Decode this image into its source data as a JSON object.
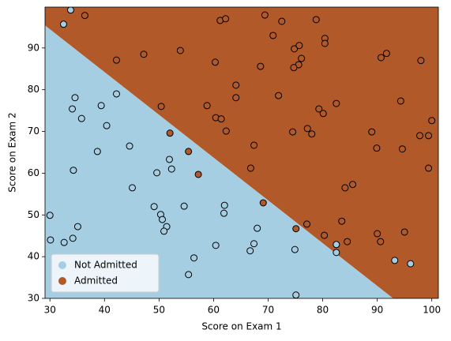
{
  "chart_data": {
    "type": "scatter",
    "xlabel": "Score on Exam 1",
    "ylabel": "Score on Exam 2",
    "xlim": [
      29.1,
      101.2
    ],
    "ylim": [
      30,
      99.8
    ],
    "xticks": [
      30,
      40,
      50,
      60,
      70,
      80,
      90,
      100
    ],
    "yticks": [
      30,
      40,
      50,
      60,
      70,
      80,
      90
    ],
    "legend": "lower left",
    "boundary": {
      "x": [
        29.1,
        92.9
      ],
      "y": [
        95.4,
        30
      ]
    },
    "series": [
      {
        "name": "Not Admitted",
        "color": "#a6cee3",
        "x": [
          33.8,
          32.5,
          42.2,
          30.0,
          30.1,
          32.6,
          34.2,
          35.1,
          34.1,
          34.6,
          35.8,
          39.4,
          40.4,
          38.7,
          34.3,
          44.6,
          45.1,
          49.6,
          51.9,
          52.3,
          49.1,
          50.3,
          50.6,
          51.4,
          50.9,
          54.6,
          62.0,
          61.9,
          56.4,
          55.4,
          60.4,
          68.0,
          67.4,
          66.7,
          74.9,
          75.1,
          82.5,
          82.5,
          93.2,
          96.1
        ],
        "y": [
          99.1,
          95.7,
          79.0,
          49.9,
          44.0,
          43.4,
          44.4,
          47.2,
          75.4,
          78.1,
          73.1,
          76.2,
          71.4,
          65.2,
          60.7,
          66.5,
          56.5,
          60.1,
          63.3,
          61.0,
          52.0,
          50.1,
          48.9,
          47.2,
          46.1,
          52.1,
          52.3,
          50.4,
          39.7,
          35.7,
          42.7,
          46.8,
          43.1,
          41.4,
          41.7,
          30.8,
          42.9,
          41.0,
          39.1,
          38.3
        ]
      },
      {
        "name": "Admitted",
        "color": "#b15928",
        "x": [
          36.4,
          42.2,
          47.2,
          53.9,
          50.4,
          60.3,
          61.2,
          62.2,
          69.4,
          72.5,
          70.9,
          78.8,
          80.4,
          80.4,
          91.7,
          90.7,
          98.0,
          74.8,
          75.7,
          76.1,
          75.6,
          74.7,
          68.6,
          64.1,
          64.1,
          71.9,
          58.8,
          60.4,
          61.4,
          62.3,
          79.3,
          80.1,
          82.5,
          94.3,
          77.2,
          78.0,
          74.5,
          67.4,
          66.8,
          89.0,
          89.9,
          94.6,
          97.8,
          99.4,
          100.0,
          99.4,
          84.1,
          85.5,
          83.5,
          90.0,
          90.6,
          95.0,
          84.5,
          80.3,
          77.1,
          52.0,
          55.4,
          57.2,
          69.1,
          75.1
        ],
        "y": [
          97.8,
          87.1,
          88.5,
          89.4,
          76.0,
          86.6,
          96.6,
          97.0,
          97.9,
          96.4,
          93.0,
          96.8,
          92.3,
          91.1,
          88.7,
          87.7,
          87.0,
          89.8,
          90.6,
          87.5,
          86.0,
          85.3,
          85.6,
          81.1,
          78.1,
          78.6,
          76.2,
          73.3,
          73.0,
          70.1,
          75.4,
          74.3,
          76.7,
          77.3,
          70.7,
          69.4,
          69.9,
          66.7,
          61.2,
          69.9,
          66.0,
          65.8,
          69.0,
          69.0,
          72.6,
          61.2,
          56.5,
          57.3,
          48.5,
          45.5,
          43.6,
          45.9,
          43.6,
          45.1,
          47.8,
          69.6,
          65.2,
          59.7,
          52.9,
          46.7
        ]
      }
    ]
  }
}
